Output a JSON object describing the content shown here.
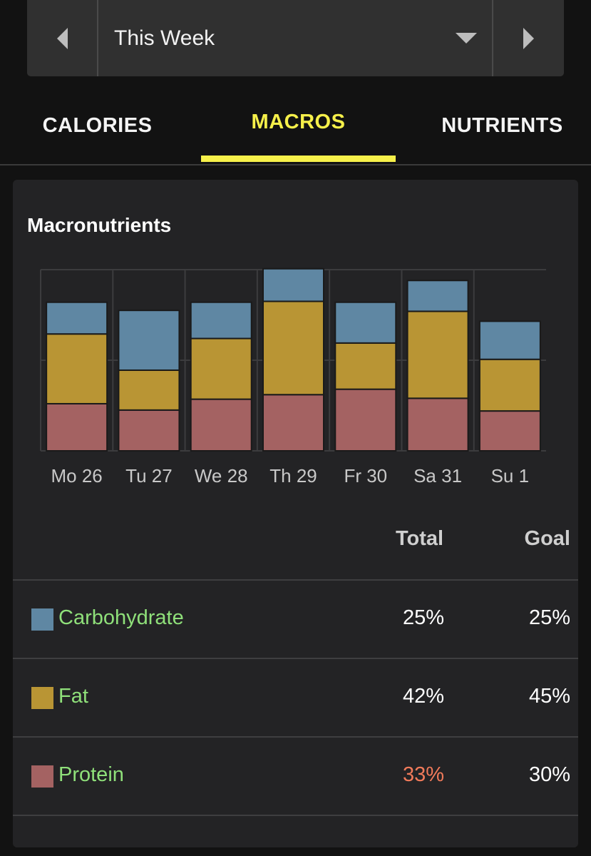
{
  "range_selector": {
    "label": "This Week"
  },
  "tabs": [
    {
      "label": "CALORIES",
      "active": false
    },
    {
      "label": "MACROS",
      "active": true
    },
    {
      "label": "NUTRIENTS",
      "active": false
    }
  ],
  "card": {
    "title": "Macronutrients"
  },
  "chart_data": {
    "type": "bar",
    "stacked": true,
    "categories": [
      "Mo 26",
      "Tu 27",
      "We 28",
      "Th 29",
      "Fr 30",
      "Sa 31",
      "Su 1"
    ],
    "ylim": [
      0,
      2
    ],
    "grid": true,
    "series": [
      {
        "name": "Protein",
        "color": "#a46262",
        "values": [
          0.52,
          0.45,
          0.57,
          0.62,
          0.68,
          0.58,
          0.44
        ]
      },
      {
        "name": "Fat",
        "color": "#b99534",
        "values": [
          0.77,
          0.44,
          0.67,
          1.03,
          0.51,
          0.96,
          0.57
        ]
      },
      {
        "name": "Carbohydrate",
        "color": "#5f87a3",
        "values": [
          0.35,
          0.66,
          0.4,
          0.36,
          0.45,
          0.34,
          0.42
        ]
      }
    ]
  },
  "table": {
    "headers": {
      "total": "Total",
      "goal": "Goal"
    },
    "rows": [
      {
        "name": "Carbohydrate",
        "color": "#5f87a3",
        "total": "25%",
        "goal": "25%",
        "total_color": "#ffffff"
      },
      {
        "name": "Fat",
        "color": "#b99534",
        "total": "42%",
        "goal": "45%",
        "total_color": "#ffffff"
      },
      {
        "name": "Protein",
        "color": "#a46262",
        "total": "33%",
        "goal": "30%",
        "total_color": "#f07a5a"
      }
    ]
  }
}
